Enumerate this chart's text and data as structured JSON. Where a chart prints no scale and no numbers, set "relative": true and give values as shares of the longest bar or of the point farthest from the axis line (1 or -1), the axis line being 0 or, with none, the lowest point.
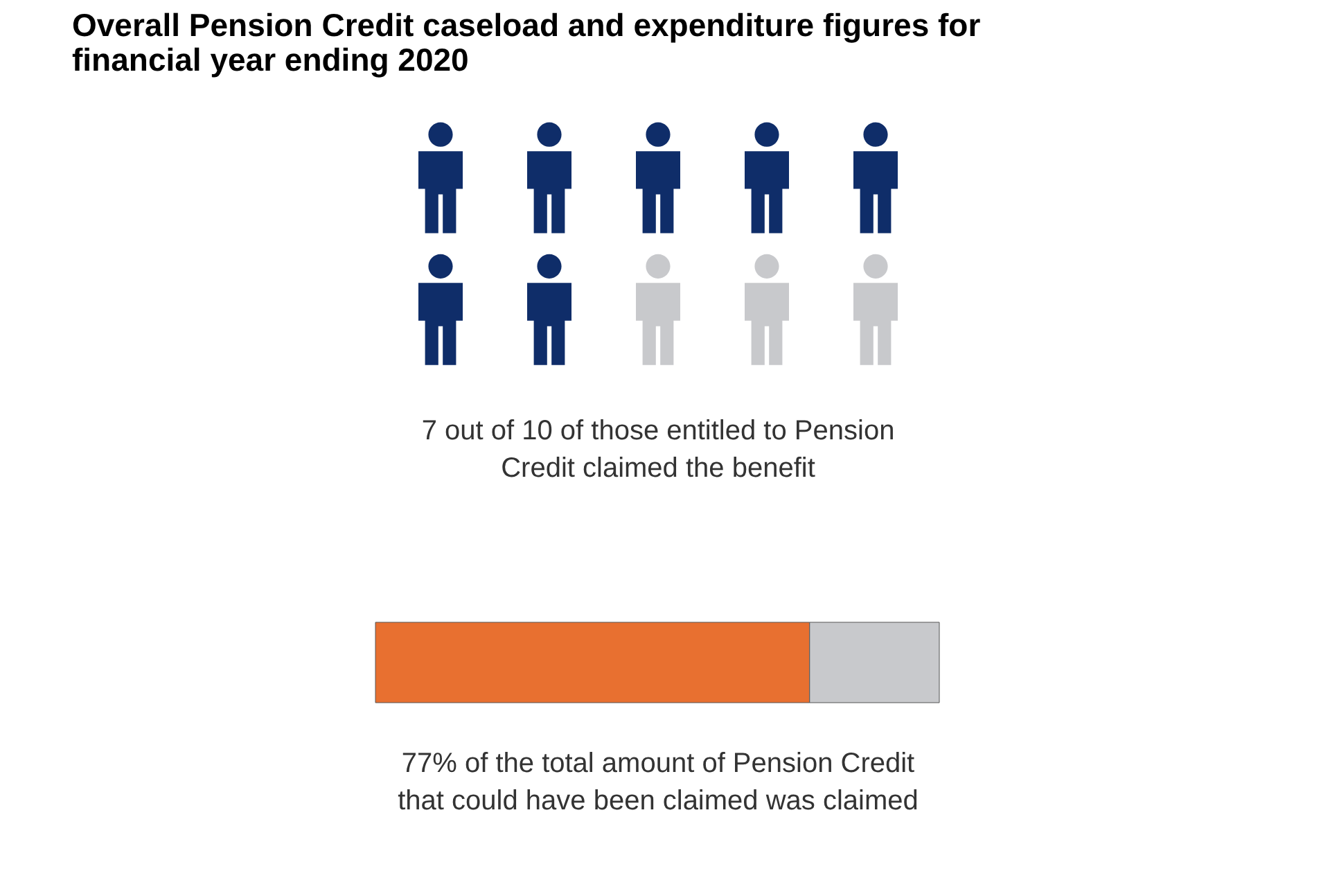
{
  "chart_data": [
    {
      "type": "other",
      "title": "Overall Pension Credit caseload and expenditure figures for financial year ending 2020",
      "colors": [
        "#0f2d69",
        "#0f2d69",
        "#0f2d69",
        "#0f2d69",
        "#0f2d69",
        "#0f2d69",
        "#0f2d69",
        "#c8c9cc",
        "#c8c9cc",
        "#c8c9cc"
      ],
      "annotations": [
        "7 out of 10 of those entitled to Pension Credit claimed the benefit"
      ]
    },
    {
      "type": "bar",
      "orientation": "horizontal",
      "stacked": true,
      "relative": true,
      "categories": [
        null
      ],
      "series": [
        {
          "color": "#e87030",
          "values": [
            0.77
          ]
        },
        {
          "color": "#c8c9cc",
          "values": [
            0.23
          ]
        }
      ],
      "annotations": [
        "77% of the total amount of Pension Credit that could have been claimed was claimed"
      ]
    }
  ]
}
